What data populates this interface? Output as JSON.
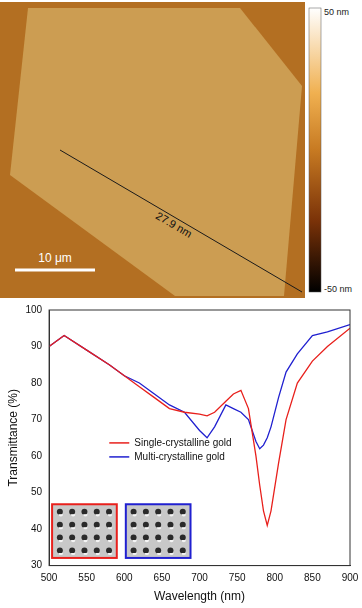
{
  "afm_image": {
    "colorbar": {
      "range": [
        -50,
        50
      ],
      "ticks": [
        {
          "value": 50,
          "label": "50 nm"
        },
        {
          "value": -50,
          "label": "-50 nm"
        }
      ]
    },
    "profile_label": "27.9 nm",
    "scale_bar_label": "10 μm"
  },
  "chart_data": {
    "type": "line",
    "x_label": "Wavelength (nm)",
    "y_label": "Transmittance (%)",
    "xlim": [
      500,
      900
    ],
    "xticks": [
      500,
      550,
      600,
      650,
      700,
      750,
      800,
      850,
      900
    ],
    "ylim": [
      30,
      100
    ],
    "yticks": [
      30,
      40,
      50,
      60,
      70,
      80,
      90,
      100
    ],
    "grid": false,
    "legend": "center",
    "x": [
      500,
      520,
      550,
      580,
      600,
      620,
      640,
      660,
      680,
      700,
      710,
      720,
      735,
      745,
      755,
      765,
      775,
      780,
      785,
      790,
      795,
      805,
      815,
      830,
      850,
      870,
      900
    ],
    "series": [
      {
        "name": "Single-crystalline gold",
        "color": "#e8201c",
        "values": [
          90,
          93,
          89,
          85,
          82,
          79,
          76,
          73,
          72,
          71.5,
          71,
          72,
          75,
          77,
          78,
          73,
          60,
          52,
          45,
          41,
          45,
          58,
          70,
          80,
          86,
          90,
          95
        ]
      },
      {
        "name": "Multi-crystalline gold",
        "color": "#2020d0",
        "values": [
          90,
          93,
          89,
          85,
          82,
          80,
          77,
          74,
          72,
          67,
          65,
          68,
          74,
          73,
          72,
          70,
          64,
          62,
          63,
          65,
          68,
          76,
          83,
          88,
          93,
          94,
          96
        ]
      }
    ]
  }
}
